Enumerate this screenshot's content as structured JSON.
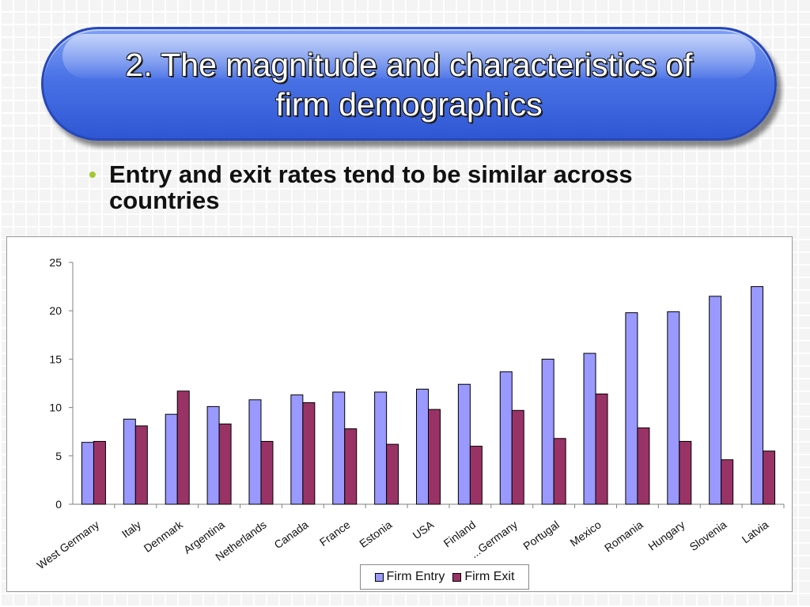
{
  "slide": {
    "title_line1": "2. The magnitude and characteristics of",
    "title_line2": "firm demographics",
    "bullet_symbol": "•",
    "bullet_text": "Entry and exit rates tend to be similar across countries"
  },
  "colors": {
    "banner_blue": "#4a72e6",
    "bullet_green": "#a4c832",
    "entry_fill": "#9999ff",
    "exit_fill": "#993366"
  },
  "chart_data": {
    "type": "bar",
    "categories": [
      "West Germany",
      "Italy",
      "Denmark",
      "Argentina",
      "Netherlands",
      "Canada",
      "France",
      "Estonia",
      "USA",
      "Finland",
      "...Germany",
      "Portugal",
      "Mexico",
      "Romania",
      "Hungary",
      "Slovenia",
      "Latvia"
    ],
    "series": [
      {
        "name": "Firm Entry",
        "values": [
          6.4,
          8.8,
          9.3,
          10.1,
          10.8,
          11.3,
          11.6,
          11.6,
          11.9,
          12.4,
          13.7,
          15.0,
          15.6,
          19.8,
          19.9,
          21.5,
          22.5
        ]
      },
      {
        "name": "Firm Exit",
        "values": [
          6.5,
          8.1,
          11.7,
          8.3,
          6.5,
          10.5,
          7.8,
          6.2,
          9.8,
          6.0,
          9.7,
          6.8,
          11.4,
          7.9,
          6.5,
          4.6,
          5.5
        ]
      }
    ],
    "yticks": [
      0,
      5,
      10,
      15,
      20,
      25
    ],
    "ylim": [
      0,
      25
    ],
    "grid": false,
    "legend_position": "bottom"
  }
}
